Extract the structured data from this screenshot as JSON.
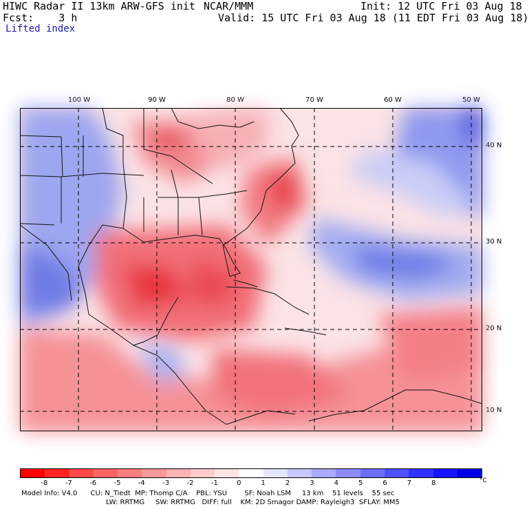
{
  "header": {
    "title_left": "HIWC Radar II 13km ARW-GFS init",
    "center_label": "NCAR/MMM",
    "init_label": "Init: 12 UTC Fri 03 Aug 18",
    "fcst_label": "Fcst:    3 h",
    "valid_label": "Valid: 15 UTC Fri 03 Aug 18 (11 EDT Fri 03 Aug 18)",
    "field_name": "Lifted index"
  },
  "axes": {
    "longitudes": [
      "100 W",
      "90 W",
      "80 W",
      "70 W",
      "60 W",
      "50 W"
    ],
    "latitudes": [
      "40 N",
      "30 N",
      "20 N",
      "10 N"
    ]
  },
  "colorbar": {
    "ticks": [
      "-8",
      "-7",
      "-6",
      "-5",
      "-4",
      "-3",
      "-2",
      "-1",
      "0",
      "1",
      "2",
      "3",
      "4",
      "5",
      "6",
      "7",
      "8"
    ],
    "unit": "°C",
    "colors": [
      "#ff0000",
      "#ff2424",
      "#ff4646",
      "#ff6464",
      "#ff7e7e",
      "#ff9898",
      "#ffb2b2",
      "#ffcccc",
      "#ffe4e4",
      "#ffffff",
      "#e6e6ff",
      "#c8c8ff",
      "#aaaaff",
      "#8c8cff",
      "#6e6eff",
      "#5050ff",
      "#3232ff",
      "#1414ff",
      "#0000e6"
    ]
  },
  "footer": {
    "line1": "Model Info: V4.0      CU: N_Tiedt  MP: Thomp C/A    PBL: YSU        SF: Noah LSM     13 km    51 levels    55 sec",
    "line2": "LW: RRTMG     SW: RRTMG   DIFF: full    KM: 2D Smagor DAMP: Rayleigh3  SFLAY: MM5"
  }
}
